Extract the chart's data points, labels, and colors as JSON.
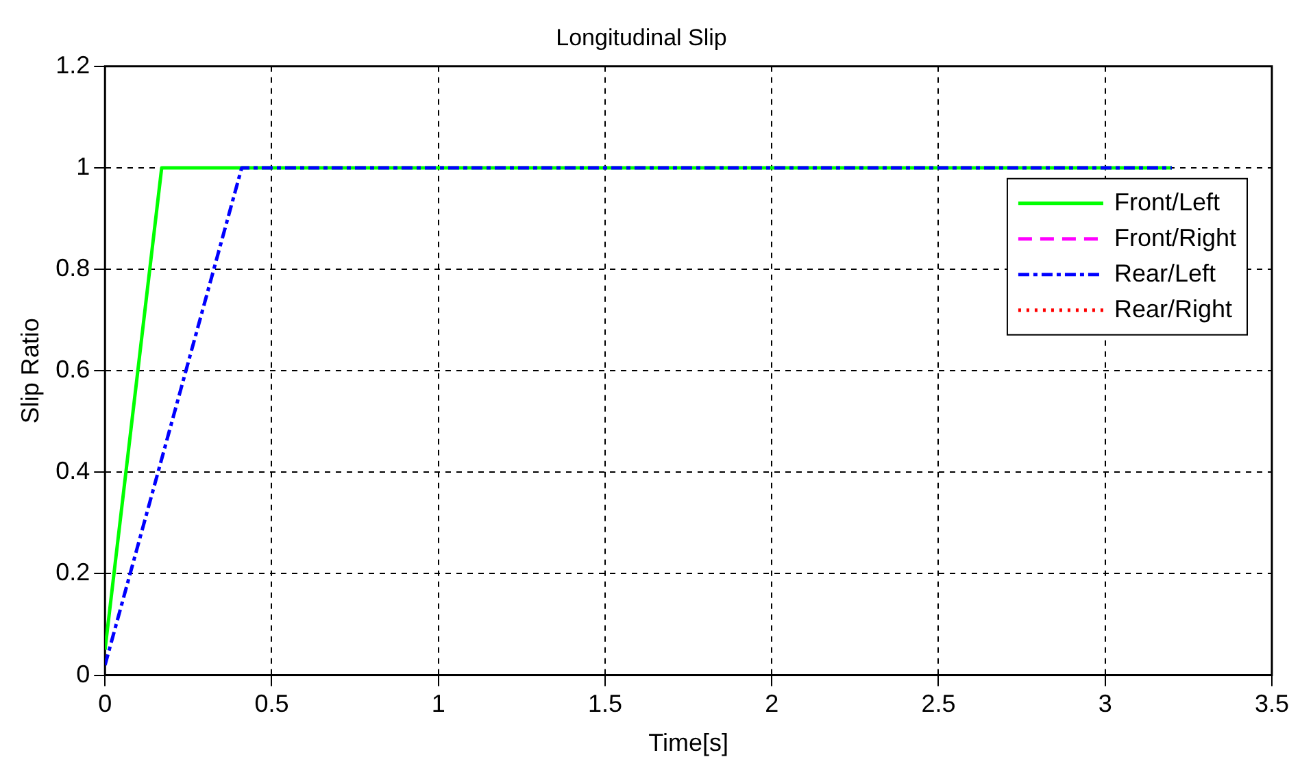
{
  "chart_data": {
    "type": "line",
    "title": "Longitudinal Slip",
    "xlabel": "Time[s]",
    "ylabel": "Slip Ratio",
    "series": [
      {
        "name": "Front/Left",
        "color": "#00ff00",
        "line_style": "solid",
        "x": [
          0,
          0.17,
          3.2
        ],
        "values": [
          0.05,
          1,
          1
        ]
      },
      {
        "name": "Front/Right",
        "color": "#ff00ff",
        "line_style": "dashed"
      },
      {
        "name": "Rear/Left",
        "color": "#0000ff",
        "line_style": "dashdot",
        "x": [
          0,
          0.41,
          3.2
        ],
        "values": [
          0.02,
          1,
          1
        ]
      },
      {
        "name": "Rear/Right",
        "color": "#ff0000",
        "line_style": "dotted"
      }
    ],
    "xlim": [
      0,
      3.5
    ],
    "xticks": [
      0,
      0.5,
      1,
      1.5,
      2,
      2.5,
      3,
      3.5
    ],
    "ylim": [
      0,
      1.2
    ],
    "yticks": [
      0,
      0.2,
      0.4,
      0.6,
      0.8,
      1,
      1.2
    ],
    "grid": true,
    "legend": "right",
    "marker": "none"
  }
}
